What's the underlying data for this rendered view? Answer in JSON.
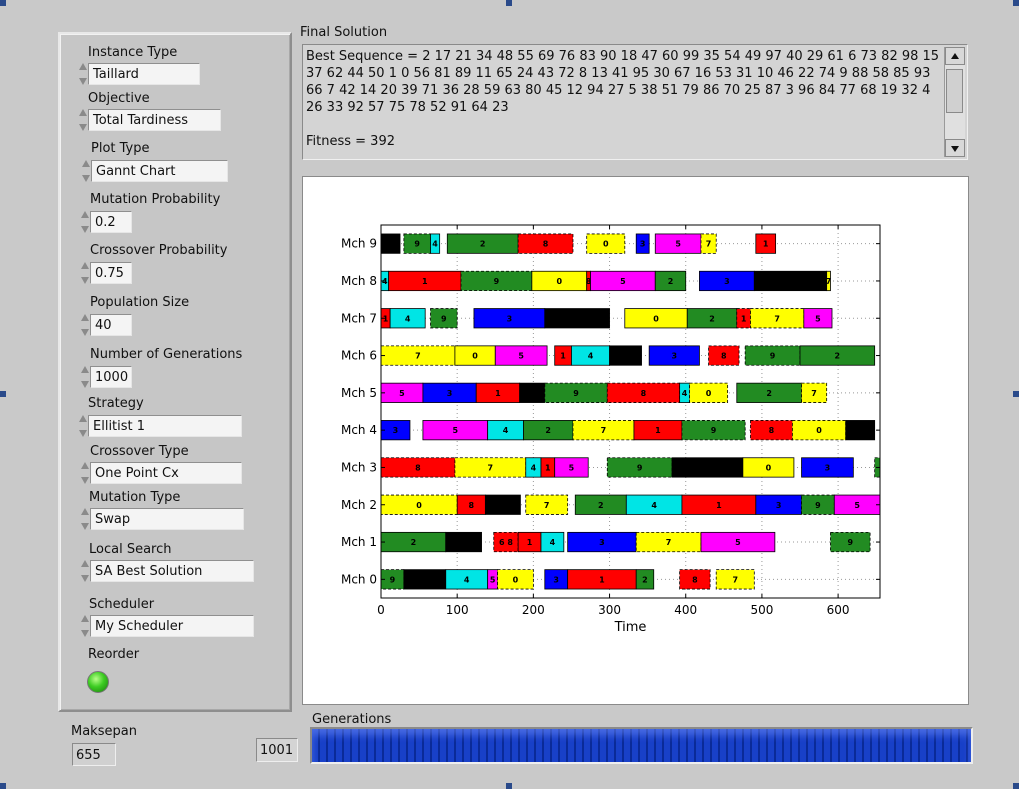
{
  "panel": {
    "fields": [
      {
        "key": "instance_type",
        "label": "Instance Type",
        "value": "Taillard"
      },
      {
        "key": "objective",
        "label": "Objective",
        "value": "Total Tardiness"
      },
      {
        "key": "plot_type",
        "label": "Plot Type",
        "value": "Gannt Chart"
      },
      {
        "key": "mutation_probability",
        "label": "Mutation Probability",
        "value": "0.2"
      },
      {
        "key": "crossover_probability",
        "label": "Crossover Probability",
        "value": "0.75"
      },
      {
        "key": "population_size",
        "label": "Population Size",
        "value": "40"
      },
      {
        "key": "number_of_generations",
        "label": "Number of Generations",
        "value": "1000"
      },
      {
        "key": "strategy",
        "label": "Strategy",
        "value": "Ellitist 1"
      },
      {
        "key": "crossover_type",
        "label": "Crossover Type",
        "value": "One Point Cx"
      },
      {
        "key": "mutation_type",
        "label": "Mutation Type",
        "value": "Swap"
      },
      {
        "key": "local_search",
        "label": "Local Search",
        "value": "SA Best Solution"
      },
      {
        "key": "scheduler",
        "label": "Scheduler",
        "value": "My Scheduler"
      }
    ],
    "reorder_label": "Reorder",
    "reorder_on": true
  },
  "solution": {
    "label": "Final Solution",
    "text": "Best Sequence = 2 17 21 34 48 55 69 76 83 90 18 47 60 99 35 54 49 97 40 29 61 6 73 82 98 15 37 62 44 50 1 0 56 81 89 11 65 24 43 72 8 13 41 95 30 67 16 53 31 10 46 22 74 9 88 58 85 93 66 7 42 14 20 39 71 36 28 59 63 80 45 12 94 27 5 38 51 79 86 70 25 87 3 96 84 77 68 19 32 4 26 33 92 57 75 78 52 91 64 23\n\nFitness = 392"
  },
  "makespan": {
    "label": "Maksepan",
    "value": "655"
  },
  "generations": {
    "label": "Generations",
    "value": "1001",
    "progress": 1.0
  },
  "colors": {
    "0": "#ffff00",
    "1": "#ff0000",
    "2": "#228b22",
    "3": "#0000ff",
    "4": "#00e5e5",
    "5": "#ff00ff",
    "6": "#ffff00",
    "7": "#ffff00",
    "8": "#ff0000",
    "9": "#228b22",
    "black": "#000000"
  },
  "chart_data": {
    "type": "gantt",
    "xlabel": "Time",
    "xlim": [
      0,
      655
    ],
    "xticks": [
      0,
      100,
      200,
      300,
      400,
      500,
      600
    ],
    "grid": true,
    "machines": [
      "Mch 0",
      "Mch 1",
      "Mch 2",
      "Mch 3",
      "Mch 4",
      "Mch 5",
      "Mch 6",
      "Mch 7",
      "Mch 8",
      "Mch 9"
    ],
    "bars": [
      {
        "m": 0,
        "s": 0,
        "e": 30,
        "c": "9",
        "t": "9",
        "d": true
      },
      {
        "m": 0,
        "s": 30,
        "e": 85,
        "c": "black",
        "t": ""
      },
      {
        "m": 0,
        "s": 85,
        "e": 140,
        "c": "4",
        "t": "4"
      },
      {
        "m": 0,
        "s": 140,
        "e": 153,
        "c": "5",
        "t": "5"
      },
      {
        "m": 0,
        "s": 153,
        "e": 200,
        "c": "0",
        "t": "0",
        "d": true
      },
      {
        "m": 0,
        "s": 215,
        "e": 245,
        "c": "3",
        "t": "3"
      },
      {
        "m": 0,
        "s": 245,
        "e": 335,
        "c": "1",
        "t": "1"
      },
      {
        "m": 0,
        "s": 335,
        "e": 358,
        "c": "2",
        "t": "2"
      },
      {
        "m": 0,
        "s": 392,
        "e": 432,
        "c": "8",
        "t": "8",
        "d": true
      },
      {
        "m": 0,
        "s": 440,
        "e": 490,
        "c": "7",
        "t": "7",
        "d": true
      },
      {
        "m": 1,
        "s": 0,
        "e": 85,
        "c": "2",
        "t": "2"
      },
      {
        "m": 1,
        "s": 85,
        "e": 132,
        "c": "black",
        "t": ""
      },
      {
        "m": 1,
        "s": 148,
        "e": 180,
        "c": "8",
        "t": "6 8",
        "d": true
      },
      {
        "m": 1,
        "s": 180,
        "e": 210,
        "c": "1",
        "t": "1"
      },
      {
        "m": 1,
        "s": 210,
        "e": 240,
        "c": "4",
        "t": "4"
      },
      {
        "m": 1,
        "s": 245,
        "e": 335,
        "c": "3",
        "t": "3"
      },
      {
        "m": 1,
        "s": 335,
        "e": 420,
        "c": "7",
        "t": "7",
        "d": true
      },
      {
        "m": 1,
        "s": 420,
        "e": 517,
        "c": "5",
        "t": "5"
      },
      {
        "m": 1,
        "s": 590,
        "e": 642,
        "c": "9",
        "t": "9",
        "d": true
      },
      {
        "m": 2,
        "s": 0,
        "e": 100,
        "c": "0",
        "t": "0",
        "d": true
      },
      {
        "m": 2,
        "s": 100,
        "e": 137,
        "c": "8",
        "t": "8"
      },
      {
        "m": 2,
        "s": 137,
        "e": 183,
        "c": "black",
        "t": ""
      },
      {
        "m": 2,
        "s": 190,
        "e": 245,
        "c": "7",
        "t": "7",
        "d": true
      },
      {
        "m": 2,
        "s": 255,
        "e": 322,
        "c": "2",
        "t": "2"
      },
      {
        "m": 2,
        "s": 322,
        "e": 395,
        "c": "4",
        "t": "4"
      },
      {
        "m": 2,
        "s": 395,
        "e": 492,
        "c": "1",
        "t": "1"
      },
      {
        "m": 2,
        "s": 492,
        "e": 552,
        "c": "3",
        "t": "3"
      },
      {
        "m": 2,
        "s": 552,
        "e": 595,
        "c": "9",
        "t": "9",
        "d": true
      },
      {
        "m": 2,
        "s": 595,
        "e": 655,
        "c": "5",
        "t": "5"
      },
      {
        "m": 3,
        "s": 0,
        "e": 97,
        "c": "8",
        "t": "8",
        "d": true
      },
      {
        "m": 3,
        "s": 97,
        "e": 190,
        "c": "7",
        "t": "7",
        "d": true
      },
      {
        "m": 3,
        "s": 190,
        "e": 210,
        "c": "4",
        "t": "4"
      },
      {
        "m": 3,
        "s": 210,
        "e": 228,
        "c": "1",
        "t": "1"
      },
      {
        "m": 3,
        "s": 228,
        "e": 272,
        "c": "5",
        "t": "5"
      },
      {
        "m": 3,
        "s": 297,
        "e": 382,
        "c": "9",
        "t": "9",
        "d": true
      },
      {
        "m": 3,
        "s": 382,
        "e": 475,
        "c": "black",
        "t": ""
      },
      {
        "m": 3,
        "s": 475,
        "e": 542,
        "c": "0",
        "t": "0"
      },
      {
        "m": 3,
        "s": 552,
        "e": 620,
        "c": "3",
        "t": "3"
      },
      {
        "m": 3,
        "s": 648,
        "e": 655,
        "c": "9",
        "t": "",
        "d": true
      },
      {
        "m": 4,
        "s": 0,
        "e": 38,
        "c": "3",
        "t": "3"
      },
      {
        "m": 4,
        "s": 55,
        "e": 140,
        "c": "5",
        "t": "5"
      },
      {
        "m": 4,
        "s": 140,
        "e": 187,
        "c": "4",
        "t": "4"
      },
      {
        "m": 4,
        "s": 187,
        "e": 252,
        "c": "2",
        "t": "2"
      },
      {
        "m": 4,
        "s": 252,
        "e": 332,
        "c": "7",
        "t": "7",
        "d": true
      },
      {
        "m": 4,
        "s": 332,
        "e": 395,
        "c": "1",
        "t": "1"
      },
      {
        "m": 4,
        "s": 395,
        "e": 478,
        "c": "9",
        "t": "9",
        "d": true
      },
      {
        "m": 4,
        "s": 485,
        "e": 540,
        "c": "8",
        "t": "8",
        "d": true
      },
      {
        "m": 4,
        "s": 540,
        "e": 610,
        "c": "0",
        "t": "0",
        "d": true
      },
      {
        "m": 4,
        "s": 610,
        "e": 648,
        "c": "black",
        "t": ""
      },
      {
        "m": 5,
        "s": 0,
        "e": 55,
        "c": "5",
        "t": "5"
      },
      {
        "m": 5,
        "s": 55,
        "e": 125,
        "c": "3",
        "t": "3"
      },
      {
        "m": 5,
        "s": 125,
        "e": 182,
        "c": "1",
        "t": "1"
      },
      {
        "m": 5,
        "s": 182,
        "e": 215,
        "c": "black",
        "t": ""
      },
      {
        "m": 5,
        "s": 215,
        "e": 297,
        "c": "9",
        "t": "9",
        "d": true
      },
      {
        "m": 5,
        "s": 297,
        "e": 392,
        "c": "8",
        "t": "8",
        "d": true
      },
      {
        "m": 5,
        "s": 392,
        "e": 405,
        "c": "4",
        "t": "4"
      },
      {
        "m": 5,
        "s": 405,
        "e": 455,
        "c": "0",
        "t": "0",
        "d": true
      },
      {
        "m": 5,
        "s": 467,
        "e": 552,
        "c": "2",
        "t": "2"
      },
      {
        "m": 5,
        "s": 552,
        "e": 585,
        "c": "7",
        "t": "7",
        "d": true
      },
      {
        "m": 6,
        "s": 0,
        "e": 97,
        "c": "7",
        "t": "7",
        "d": true
      },
      {
        "m": 6,
        "s": 97,
        "e": 150,
        "c": "0",
        "t": "0"
      },
      {
        "m": 6,
        "s": 150,
        "e": 218,
        "c": "5",
        "t": "5"
      },
      {
        "m": 6,
        "s": 228,
        "e": 250,
        "c": "1",
        "t": "1"
      },
      {
        "m": 6,
        "s": 250,
        "e": 300,
        "c": "4",
        "t": "4"
      },
      {
        "m": 6,
        "s": 300,
        "e": 342,
        "c": "black",
        "t": ""
      },
      {
        "m": 6,
        "s": 352,
        "e": 418,
        "c": "3",
        "t": "3"
      },
      {
        "m": 6,
        "s": 430,
        "e": 470,
        "c": "8",
        "t": "8",
        "d": true
      },
      {
        "m": 6,
        "s": 478,
        "e": 550,
        "c": "9",
        "t": "9",
        "d": true
      },
      {
        "m": 6,
        "s": 550,
        "e": 648,
        "c": "2",
        "t": "2"
      },
      {
        "m": 7,
        "s": 0,
        "e": 12,
        "c": "1",
        "t": "1"
      },
      {
        "m": 7,
        "s": 12,
        "e": 58,
        "c": "4",
        "t": "4"
      },
      {
        "m": 7,
        "s": 65,
        "e": 100,
        "c": "9",
        "t": "9",
        "d": true
      },
      {
        "m": 7,
        "s": 122,
        "e": 215,
        "c": "3",
        "t": "3"
      },
      {
        "m": 7,
        "s": 215,
        "e": 300,
        "c": "black",
        "t": ""
      },
      {
        "m": 7,
        "s": 320,
        "e": 402,
        "c": "0",
        "t": "0"
      },
      {
        "m": 7,
        "s": 402,
        "e": 467,
        "c": "2",
        "t": "2"
      },
      {
        "m": 7,
        "s": 467,
        "e": 485,
        "c": "1",
        "t": "1",
        "d": true
      },
      {
        "m": 7,
        "s": 485,
        "e": 555,
        "c": "7",
        "t": "7",
        "d": true
      },
      {
        "m": 7,
        "s": 555,
        "e": 592,
        "c": "5",
        "t": "5"
      },
      {
        "m": 8,
        "s": 0,
        "e": 10,
        "c": "4",
        "t": "4"
      },
      {
        "m": 8,
        "s": 10,
        "e": 105,
        "c": "1",
        "t": "1"
      },
      {
        "m": 8,
        "s": 105,
        "e": 198,
        "c": "9",
        "t": "9",
        "d": true
      },
      {
        "m": 8,
        "s": 198,
        "e": 270,
        "c": "0",
        "t": "0"
      },
      {
        "m": 8,
        "s": 270,
        "e": 275,
        "c": "8",
        "t": "8"
      },
      {
        "m": 8,
        "s": 275,
        "e": 360,
        "c": "5",
        "t": "5"
      },
      {
        "m": 8,
        "s": 360,
        "e": 400,
        "c": "2",
        "t": "2"
      },
      {
        "m": 8,
        "s": 418,
        "e": 490,
        "c": "3",
        "t": "3"
      },
      {
        "m": 8,
        "s": 490,
        "e": 585,
        "c": "black",
        "t": ""
      },
      {
        "m": 8,
        "s": 585,
        "e": 590,
        "c": "7",
        "t": "7"
      },
      {
        "m": 9,
        "s": 0,
        "e": 25,
        "c": "black",
        "t": ""
      },
      {
        "m": 9,
        "s": 30,
        "e": 65,
        "c": "9",
        "t": "9",
        "d": true
      },
      {
        "m": 9,
        "s": 65,
        "e": 77,
        "c": "4",
        "t": "4"
      },
      {
        "m": 9,
        "s": 87,
        "e": 180,
        "c": "2",
        "t": "2"
      },
      {
        "m": 9,
        "s": 180,
        "e": 252,
        "c": "8",
        "t": "8",
        "d": true
      },
      {
        "m": 9,
        "s": 270,
        "e": 320,
        "c": "0",
        "t": "0",
        "d": true
      },
      {
        "m": 9,
        "s": 335,
        "e": 352,
        "c": "3",
        "t": "3"
      },
      {
        "m": 9,
        "s": 360,
        "e": 420,
        "c": "5",
        "t": "5"
      },
      {
        "m": 9,
        "s": 420,
        "e": 440,
        "c": "7",
        "t": "7",
        "d": true
      },
      {
        "m": 9,
        "s": 492,
        "e": 518,
        "c": "1",
        "t": "1"
      }
    ]
  }
}
